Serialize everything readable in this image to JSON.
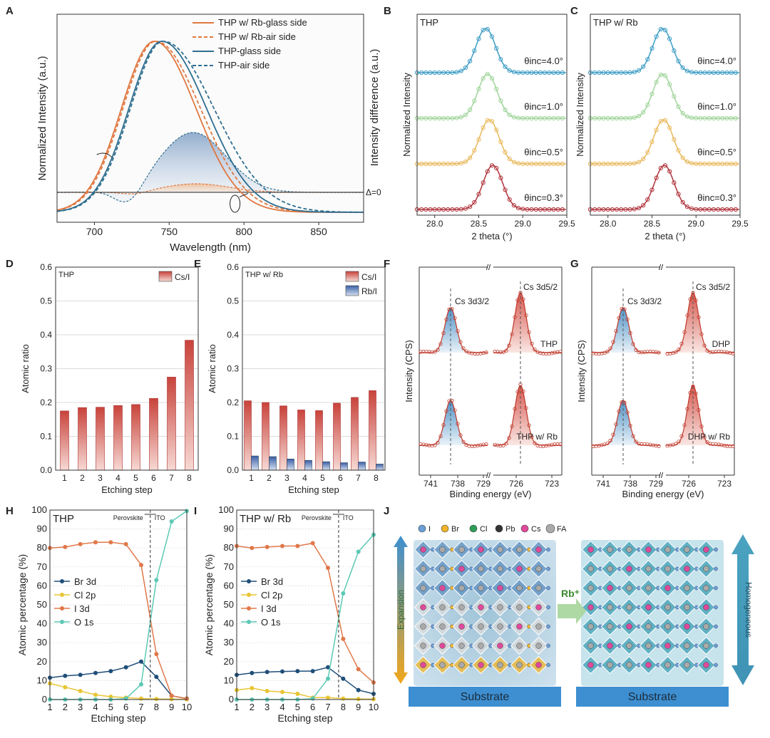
{
  "colors": {
    "orange": "#e0773f",
    "blue": "#2f6e8f",
    "red_bar": "#c9524a",
    "blue_bar": "#4a6fae",
    "xrd_blue": "#3b9cc4",
    "xrd_green": "#9fd49a",
    "xrd_yellow": "#e8b85a",
    "xrd_red": "#b0343c",
    "br": "#1f4e79",
    "cl": "#e8c534",
    "i": "#e0784a",
    "o": "#5cc9b5",
    "lattice_teal": "#3e9fb5",
    "lattice_yellow": "#f0b429",
    "substrate": "#3d8fd1"
  },
  "labels": {
    "A": "A",
    "B": "B",
    "C": "C",
    "D": "D",
    "E": "E",
    "F": "F",
    "G": "G",
    "H": "H",
    "I": "I",
    "J": "J"
  },
  "chart_data": [
    {
      "id": "A",
      "type": "line",
      "xlabel": "Wavelength (nm)",
      "ylabel_left": "Normalized Intensity (a.u.)",
      "ylabel_right": "Intensity difference (a.u.)",
      "xlim": [
        675,
        880
      ],
      "xticks": [
        "700",
        "750",
        "800",
        "850"
      ],
      "delta_label": "Δ=0",
      "legend": [
        "THP w/ Rb-glass side",
        "THP w/ Rb-air side",
        "THP-glass side",
        "THP-air side"
      ],
      "series": [
        {
          "name": "THP w/ Rb-glass side",
          "peak": 740,
          "width_left": 22,
          "width_right": 28,
          "style": "solid"
        },
        {
          "name": "THP w/ Rb-air side",
          "peak": 741,
          "width_left": 22,
          "width_right": 30,
          "style": "dashed"
        },
        {
          "name": "THP-glass side",
          "peak": 745,
          "width_left": 22,
          "width_right": 30,
          "style": "solid"
        },
        {
          "name": "THP-air side",
          "peak": 746,
          "width_left": 22,
          "width_right": 34,
          "style": "dashed"
        }
      ],
      "difference": [
        {
          "name": "THP-air side",
          "peak": 766,
          "amp": 0.42,
          "dip_center": 723,
          "dip_amp": -0.12
        },
        {
          "name": "THP w/ Rb-air side",
          "peak": 768,
          "amp": 0.06,
          "dip_center": 727,
          "dip_amp": -0.02
        }
      ]
    },
    {
      "id": "B",
      "type": "line",
      "title": "THP",
      "xlabel": "2 theta (°)",
      "ylabel": "Normalized Intensity",
      "xlim": [
        27.8,
        29.5
      ],
      "xticks": [
        "28.0",
        "28.5",
        "29.0",
        "29.5"
      ],
      "series": [
        {
          "label": "θinc=4.0°",
          "angle": "4.0°",
          "peak": 28.58
        },
        {
          "label": "θinc=1.0°",
          "angle": "1.0°",
          "peak": 28.6
        },
        {
          "label": "θinc=0.5°",
          "angle": "0.5°",
          "peak": 28.62
        },
        {
          "label": "θinc=0.3°",
          "angle": "0.3°",
          "peak": 28.66
        }
      ]
    },
    {
      "id": "C",
      "type": "line",
      "title": "THP w/ Rb",
      "xlabel": "2 theta (°)",
      "ylabel": "Normalized Intensity",
      "xlim": [
        27.8,
        29.5
      ],
      "xticks": [
        "28.0",
        "28.5",
        "29.0",
        "29.5"
      ],
      "series": [
        {
          "label": "θinc=4.0°",
          "angle": "4.0°",
          "peak": 28.62
        },
        {
          "label": "θinc=1.0°",
          "angle": "1.0°",
          "peak": 28.62
        },
        {
          "label": "θinc=0.5°",
          "angle": "0.5°",
          "peak": 28.63
        },
        {
          "label": "θinc=0.3°",
          "angle": "0.3°",
          "peak": 28.64
        }
      ]
    },
    {
      "id": "D",
      "type": "bar",
      "title": "THP",
      "xlabel": "Etching step",
      "ylabel": "Atomic ratio",
      "ylim": [
        0,
        0.6
      ],
      "yticks": [
        "0.0",
        "0.1",
        "0.2",
        "0.3",
        "0.4",
        "0.5",
        "0.6"
      ],
      "categories": [
        "1",
        "2",
        "3",
        "4",
        "5",
        "6",
        "7",
        "8"
      ],
      "series": [
        {
          "name": "Cs/I",
          "values": [
            0.175,
            0.185,
            0.186,
            0.191,
            0.194,
            0.212,
            0.275,
            0.384
          ]
        }
      ]
    },
    {
      "id": "E",
      "type": "bar",
      "title": "THP w/ Rb",
      "xlabel": "Etching step",
      "ylabel": "Atomic ratio",
      "ylim": [
        0,
        0.6
      ],
      "yticks": [
        "0.0",
        "0.1",
        "0.2",
        "0.3",
        "0.4",
        "0.5",
        "0.6"
      ],
      "categories": [
        "1",
        "2",
        "3",
        "4",
        "5",
        "6",
        "7",
        "8"
      ],
      "series": [
        {
          "name": "Cs/I",
          "values": [
            0.205,
            0.2,
            0.19,
            0.178,
            0.176,
            0.198,
            0.215,
            0.235
          ]
        },
        {
          "name": "Rb/I",
          "values": [
            0.042,
            0.04,
            0.033,
            0.029,
            0.025,
            0.022,
            0.024,
            0.018
          ]
        }
      ]
    },
    {
      "id": "F",
      "type": "line",
      "xlabel": "Binding energy (eV)",
      "ylabel": "Intensity (CPS)",
      "xticks": [
        "741",
        "738",
        "729",
        "726",
        "723"
      ],
      "peak_labels": [
        "Cs 3d3/2",
        "Cs 3d5/2"
      ],
      "samples": [
        "THP",
        "THP w/ Rb"
      ]
    },
    {
      "id": "G",
      "type": "line",
      "xlabel": "Binding energy (eV)",
      "ylabel": "Intensity (CPS)",
      "xticks": [
        "741",
        "738",
        "729",
        "726",
        "723"
      ],
      "peak_labels": [
        "Cs 3d3/2",
        "Cs 3d5/2"
      ],
      "samples": [
        "DHP",
        "DHP w/ Rb"
      ]
    },
    {
      "id": "H",
      "type": "line",
      "title": "THP",
      "xlabel": "Etching step",
      "ylabel": "Atomic percentage (%)",
      "ylim": [
        0,
        100
      ],
      "yticks": [
        "0",
        "10",
        "20",
        "30",
        "40",
        "50",
        "60",
        "70",
        "80",
        "90",
        "100"
      ],
      "x": [
        1,
        2,
        3,
        4,
        5,
        6,
        7,
        8,
        9,
        10
      ],
      "interface_label": "Perovskite",
      "interface_label2": "ITO",
      "interface_x": 7.6,
      "series": [
        {
          "name": "Br 3d",
          "values": [
            11.5,
            12.5,
            13,
            14,
            15,
            17,
            20,
            12,
            2,
            0.5
          ]
        },
        {
          "name": "Cl 2p",
          "values": [
            8.5,
            6.5,
            4.5,
            2.5,
            1.5,
            1,
            0.5,
            0.3,
            0.2,
            0.1
          ]
        },
        {
          "name": "I 3d",
          "values": [
            80,
            80.5,
            82,
            83,
            83,
            82,
            71,
            24,
            2,
            0.5
          ]
        },
        {
          "name": "O 1s",
          "values": [
            0,
            0,
            0,
            0,
            0,
            0.5,
            8,
            63,
            94,
            99.5
          ]
        }
      ]
    },
    {
      "id": "I",
      "type": "line",
      "title": "THP w/ Rb",
      "xlabel": "Etching step",
      "ylabel": "Atomic percentage (%)",
      "ylim": [
        0,
        100
      ],
      "yticks": [
        "0",
        "10",
        "20",
        "30",
        "40",
        "50",
        "60",
        "70",
        "80",
        "90",
        "100"
      ],
      "x": [
        1,
        2,
        3,
        4,
        5,
        6,
        7,
        8,
        9,
        10
      ],
      "interface_label": "Perovskite",
      "interface_label2": "ITO",
      "interface_x": 7.7,
      "series": [
        {
          "name": "Br 3d",
          "values": [
            13,
            14,
            14.5,
            14.8,
            15,
            15,
            17,
            11,
            5,
            3
          ]
        },
        {
          "name": "Cl 2p",
          "values": [
            5,
            6,
            4.5,
            4,
            3,
            1,
            1,
            0.5,
            0.3,
            0.2
          ]
        },
        {
          "name": "I 3d",
          "values": [
            81,
            80,
            80.5,
            81,
            81,
            82.5,
            69.5,
            32,
            16,
            9
          ]
        },
        {
          "name": "O 1s",
          "values": [
            0,
            0,
            0,
            0,
            0,
            0.5,
            11,
            56,
            78,
            87
          ]
        }
      ]
    }
  ],
  "panel_j": {
    "legend": [
      "I",
      "Br",
      "Cl",
      "Pb",
      "Cs",
      "FA"
    ],
    "substrate_left": "Substrate",
    "substrate_right": "Substrate",
    "rb_label": "Rb⁺",
    "left_arrow_label": "Expansion",
    "right_arrow_label": "Homogeneous"
  }
}
